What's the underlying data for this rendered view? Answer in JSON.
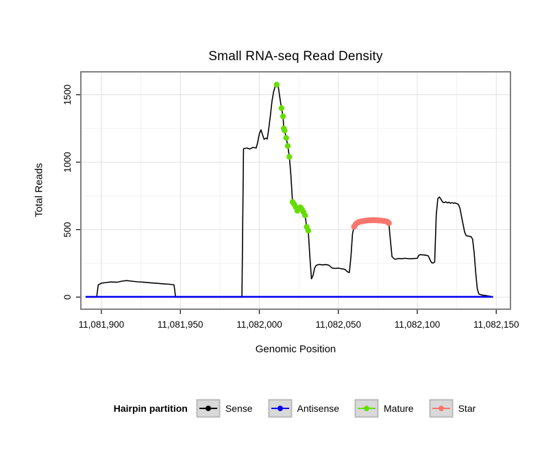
{
  "chart_data": {
    "type": "line",
    "title": "Small RNA-seq Read Density",
    "xlabel": "Genomic Position",
    "ylabel": "Total Reads",
    "xlim": [
      11081887,
      11082159
    ],
    "ylim": [
      -90,
      1670
    ],
    "grid": true,
    "x_ticks": [
      11081900,
      11081950,
      11082000,
      11082050,
      11082100,
      11082150
    ],
    "x_tick_labels": [
      "11,081,900",
      "11,081,950",
      "11,082,000",
      "11,082,050",
      "11,082,100",
      "11,082,150"
    ],
    "y_ticks": [
      0,
      500,
      1000,
      1500
    ],
    "y_tick_labels": [
      "0",
      "500",
      "1000",
      "1500"
    ],
    "legend": {
      "title": "Hairpin partition",
      "position": "bottom"
    },
    "colors": {
      "sense": "#000000",
      "antisense": "#0000EE",
      "mature": "#66DD00",
      "star": "#F8766D",
      "frame": "#7f7f7f",
      "legend_key_fill": "#d9d9d9",
      "legend_key_border": "#b9b9b9"
    },
    "series": [
      {
        "name": "Sense",
        "type": "line",
        "color": "#000000",
        "width": 1.6,
        "points": [
          [
            11081890,
            0
          ],
          [
            11081897,
            0
          ],
          [
            11081898,
            90
          ],
          [
            11081900,
            103
          ],
          [
            11081903,
            108
          ],
          [
            11081906,
            112
          ],
          [
            11081910,
            110
          ],
          [
            11081913,
            118
          ],
          [
            11081916,
            122
          ],
          [
            11081919,
            118
          ],
          [
            11081923,
            113
          ],
          [
            11081927,
            110
          ],
          [
            11081931,
            106
          ],
          [
            11081935,
            102
          ],
          [
            11081939,
            98
          ],
          [
            11081943,
            95
          ],
          [
            11081946,
            90
          ],
          [
            11081947,
            0
          ],
          [
            11081989,
            0
          ],
          [
            11081990,
            1100
          ],
          [
            11081992,
            1105
          ],
          [
            11081994,
            1098
          ],
          [
            11081996,
            1110
          ],
          [
            11081998,
            1105
          ],
          [
            11081999,
            1150
          ],
          [
            11082000,
            1210
          ],
          [
            11082001,
            1240
          ],
          [
            11082002,
            1205
          ],
          [
            11082003,
            1170
          ],
          [
            11082004,
            1178
          ],
          [
            11082005,
            1172
          ],
          [
            11082006,
            1250
          ],
          [
            11082007,
            1345
          ],
          [
            11082008,
            1450
          ],
          [
            11082009,
            1520
          ],
          [
            11082010,
            1560
          ],
          [
            11082011,
            1575
          ],
          [
            11082012,
            1560
          ],
          [
            11082013,
            1480
          ],
          [
            11082014,
            1400
          ],
          [
            11082015,
            1340
          ],
          [
            11082015.5,
            1250
          ],
          [
            11082016,
            1235
          ],
          [
            11082017,
            1180
          ],
          [
            11082018,
            1120
          ],
          [
            11082019,
            1040
          ],
          [
            11082020,
            900
          ],
          [
            11082021,
            705
          ],
          [
            11082022,
            690
          ],
          [
            11082023,
            668
          ],
          [
            11082024,
            640
          ],
          [
            11082025,
            655
          ],
          [
            11082026,
            665
          ],
          [
            11082027,
            650
          ],
          [
            11082028,
            630
          ],
          [
            11082029,
            605
          ],
          [
            11082030,
            520
          ],
          [
            11082031,
            493
          ],
          [
            11082032,
            300
          ],
          [
            11082033,
            135
          ],
          [
            11082034,
            160
          ],
          [
            11082035,
            215
          ],
          [
            11082036,
            235
          ],
          [
            11082038,
            242
          ],
          [
            11082040,
            238
          ],
          [
            11082042,
            241
          ],
          [
            11082044,
            236
          ],
          [
            11082046,
            216
          ],
          [
            11082048,
            212
          ],
          [
            11082050,
            215
          ],
          [
            11082052,
            210
          ],
          [
            11082054,
            206
          ],
          [
            11082056,
            186
          ],
          [
            11082057,
            182
          ],
          [
            11082058,
            300
          ],
          [
            11082059,
            470
          ],
          [
            11082060,
            522
          ],
          [
            11082061,
            540
          ],
          [
            11082062,
            550
          ],
          [
            11082063,
            556
          ],
          [
            11082064,
            560
          ],
          [
            11082066,
            565
          ],
          [
            11082068,
            568
          ],
          [
            11082070,
            570
          ],
          [
            11082072,
            571
          ],
          [
            11082074,
            570
          ],
          [
            11082076,
            568
          ],
          [
            11082078,
            566
          ],
          [
            11082080,
            562
          ],
          [
            11082081,
            558
          ],
          [
            11082082,
            548
          ],
          [
            11082083,
            420
          ],
          [
            11082084,
            300
          ],
          [
            11082085,
            288
          ],
          [
            11082086,
            280
          ],
          [
            11082088,
            286
          ],
          [
            11082090,
            284
          ],
          [
            11082092,
            288
          ],
          [
            11082094,
            285
          ],
          [
            11082096,
            284
          ],
          [
            11082098,
            286
          ],
          [
            11082100,
            288
          ],
          [
            11082101,
            310
          ],
          [
            11082102,
            314
          ],
          [
            11082104,
            312
          ],
          [
            11082106,
            309
          ],
          [
            11082107,
            305
          ],
          [
            11082108,
            278
          ],
          [
            11082109,
            256
          ],
          [
            11082110,
            252
          ],
          [
            11082111,
            260
          ],
          [
            11082112,
            610
          ],
          [
            11082113,
            730
          ],
          [
            11082114,
            742
          ],
          [
            11082115,
            725
          ],
          [
            11082116,
            705
          ],
          [
            11082117,
            700
          ],
          [
            11082118,
            706
          ],
          [
            11082119,
            698
          ],
          [
            11082120,
            703
          ],
          [
            11082121,
            696
          ],
          [
            11082122,
            700
          ],
          [
            11082123,
            695
          ],
          [
            11082124,
            698
          ],
          [
            11082125,
            692
          ],
          [
            11082126,
            688
          ],
          [
            11082127,
            660
          ],
          [
            11082128,
            600
          ],
          [
            11082129,
            540
          ],
          [
            11082130,
            480
          ],
          [
            11082131,
            455
          ],
          [
            11082132,
            452
          ],
          [
            11082133,
            450
          ],
          [
            11082134,
            448
          ],
          [
            11082135,
            430
          ],
          [
            11082136,
            330
          ],
          [
            11082137,
            180
          ],
          [
            11082138,
            60
          ],
          [
            11082139,
            22
          ],
          [
            11082141,
            15
          ],
          [
            11082143,
            12
          ],
          [
            11082145,
            8
          ],
          [
            11082147,
            3
          ]
        ]
      },
      {
        "name": "Antisense",
        "type": "line",
        "color": "#0000EE",
        "width": 2.6,
        "points": [
          [
            11081890,
            2
          ],
          [
            11082148,
            2
          ]
        ]
      },
      {
        "name": "Mature",
        "type": "points",
        "color": "#66DD00",
        "radius": 4.2,
        "points": [
          [
            11082011,
            1575
          ],
          [
            11082014,
            1400
          ],
          [
            11082015,
            1340
          ],
          [
            11082015.5,
            1250
          ],
          [
            11082016,
            1235
          ],
          [
            11082017,
            1180
          ],
          [
            11082018,
            1120
          ],
          [
            11082019,
            1040
          ],
          [
            11082021,
            705
          ],
          [
            11082022,
            690
          ],
          [
            11082023,
            668
          ],
          [
            11082024,
            640
          ],
          [
            11082025,
            655
          ],
          [
            11082026,
            665
          ],
          [
            11082027,
            650
          ],
          [
            11082028,
            630
          ],
          [
            11082029,
            605
          ],
          [
            11082030,
            520
          ],
          [
            11082031,
            493
          ]
        ]
      },
      {
        "name": "Star",
        "type": "points",
        "color": "#F8766D",
        "radius": 4.3,
        "points": [
          [
            11082060,
            522
          ],
          [
            11082061,
            540
          ],
          [
            11082062,
            550
          ],
          [
            11082063,
            556
          ],
          [
            11082064,
            560
          ],
          [
            11082065,
            562
          ],
          [
            11082066,
            565
          ],
          [
            11082067,
            566
          ],
          [
            11082068,
            568
          ],
          [
            11082069,
            569
          ],
          [
            11082070,
            570
          ],
          [
            11082071,
            570
          ],
          [
            11082072,
            571
          ],
          [
            11082073,
            570
          ],
          [
            11082074,
            570
          ],
          [
            11082075,
            569
          ],
          [
            11082076,
            568
          ],
          [
            11082077,
            567
          ],
          [
            11082078,
            566
          ],
          [
            11082079,
            564
          ],
          [
            11082080,
            562
          ],
          [
            11082081,
            558
          ],
          [
            11082082,
            548
          ]
        ]
      }
    ]
  }
}
